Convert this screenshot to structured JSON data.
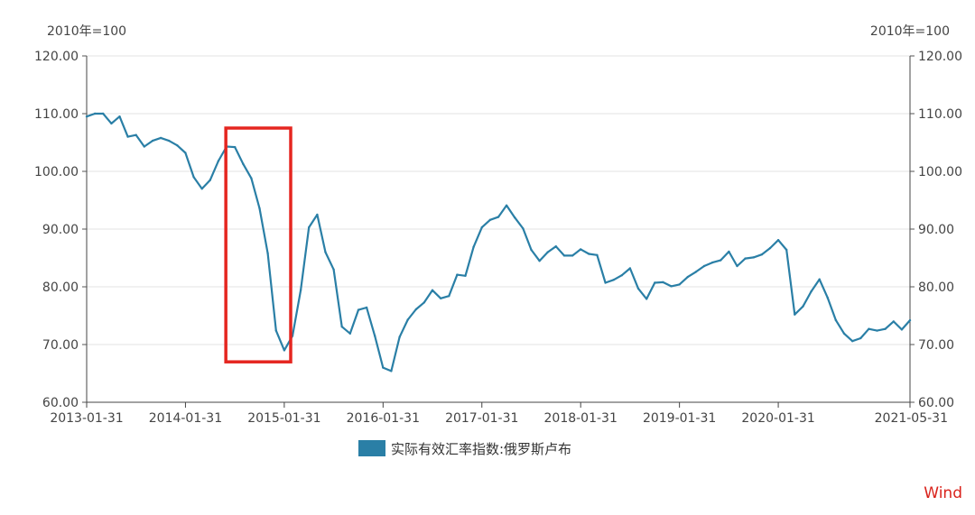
{
  "chart_data": {
    "type": "line",
    "unit_left": "2010年=100",
    "unit_right": "2010年=100",
    "ylim": [
      60,
      120
    ],
    "yticks": [
      "120.00",
      "110.00",
      "100.00",
      "90.00",
      "80.00",
      "70.00",
      "60.00"
    ],
    "xlim": [
      "2013-01-31",
      "2021-05-31"
    ],
    "xticks": [
      "2013-01-31",
      "2014-01-31",
      "2015-01-31",
      "2016-01-31",
      "2017-01-31",
      "2018-01-31",
      "2019-01-31",
      "2020-01-31",
      "2021-05-31"
    ],
    "grid": true,
    "legend_position": "bottom",
    "series": [
      {
        "name": "实际有效汇率指数:俄罗斯卢布",
        "color": "#2a7fa6",
        "x": [
          "2013-01",
          "2013-02",
          "2013-03",
          "2013-04",
          "2013-05",
          "2013-06",
          "2013-07",
          "2013-08",
          "2013-09",
          "2013-10",
          "2013-11",
          "2013-12",
          "2014-01",
          "2014-02",
          "2014-03",
          "2014-04",
          "2014-05",
          "2014-06",
          "2014-07",
          "2014-08",
          "2014-09",
          "2014-10",
          "2014-11",
          "2014-12",
          "2015-01",
          "2015-02",
          "2015-03",
          "2015-04",
          "2015-05",
          "2015-06",
          "2015-07",
          "2015-08",
          "2015-09",
          "2015-10",
          "2015-11",
          "2015-12",
          "2016-01",
          "2016-02",
          "2016-03",
          "2016-04",
          "2016-05",
          "2016-06",
          "2016-07",
          "2016-08",
          "2016-09",
          "2016-10",
          "2016-11",
          "2016-12",
          "2017-01",
          "2017-02",
          "2017-03",
          "2017-04",
          "2017-05",
          "2017-06",
          "2017-07",
          "2017-08",
          "2017-09",
          "2017-10",
          "2017-11",
          "2017-12",
          "2018-01",
          "2018-02",
          "2018-03",
          "2018-04",
          "2018-05",
          "2018-06",
          "2018-07",
          "2018-08",
          "2018-09",
          "2018-10",
          "2018-11",
          "2018-12",
          "2019-01",
          "2019-02",
          "2019-03",
          "2019-04",
          "2019-05",
          "2019-06",
          "2019-07",
          "2019-08",
          "2019-09",
          "2019-10",
          "2019-11",
          "2019-12",
          "2020-01",
          "2020-02",
          "2020-03",
          "2020-04",
          "2020-05",
          "2020-06",
          "2020-07",
          "2020-08",
          "2020-09",
          "2020-10",
          "2020-11",
          "2020-12",
          "2021-01",
          "2021-02",
          "2021-03",
          "2021-04",
          "2021-05"
        ],
        "values": [
          109.5,
          110.0,
          110.0,
          108.3,
          109.5,
          106.0,
          106.3,
          104.3,
          105.3,
          105.8,
          105.3,
          104.5,
          103.2,
          99.0,
          97.0,
          98.5,
          101.8,
          104.3,
          104.2,
          101.3,
          98.8,
          93.6,
          85.8,
          72.4,
          69.0,
          71.5,
          79.4,
          90.3,
          92.5,
          86.0,
          83.0,
          73.1,
          71.9,
          76.0,
          76.4,
          71.5,
          66.0,
          65.4,
          71.3,
          74.3,
          76.1,
          77.3,
          79.4,
          78.0,
          78.4,
          82.1,
          81.9,
          86.9,
          90.3,
          91.6,
          92.1,
          94.1,
          92.0,
          90.1,
          86.4,
          84.5,
          86.0,
          87.0,
          85.4,
          85.4,
          86.5,
          85.7,
          85.5,
          80.7,
          81.2,
          82.0,
          83.2,
          79.7,
          77.9,
          80.7,
          80.8,
          80.1,
          80.4,
          81.7,
          82.6,
          83.6,
          84.2,
          84.6,
          86.1,
          83.6,
          84.9,
          85.1,
          85.6,
          86.7,
          88.1,
          86.4,
          75.2,
          76.6,
          79.2,
          81.3,
          78.1,
          74.2,
          71.9,
          70.6,
          71.1,
          72.7,
          72.4,
          72.7,
          74.0,
          72.6,
          74.2
        ]
      }
    ],
    "highlight_box": {
      "x_from": "2014-07",
      "x_to": "2015-02",
      "y_from": 67,
      "y_to": 107.5,
      "color": "#e52620"
    }
  },
  "watermark": {
    "text": "Wind",
    "color": "#d9221b"
  }
}
